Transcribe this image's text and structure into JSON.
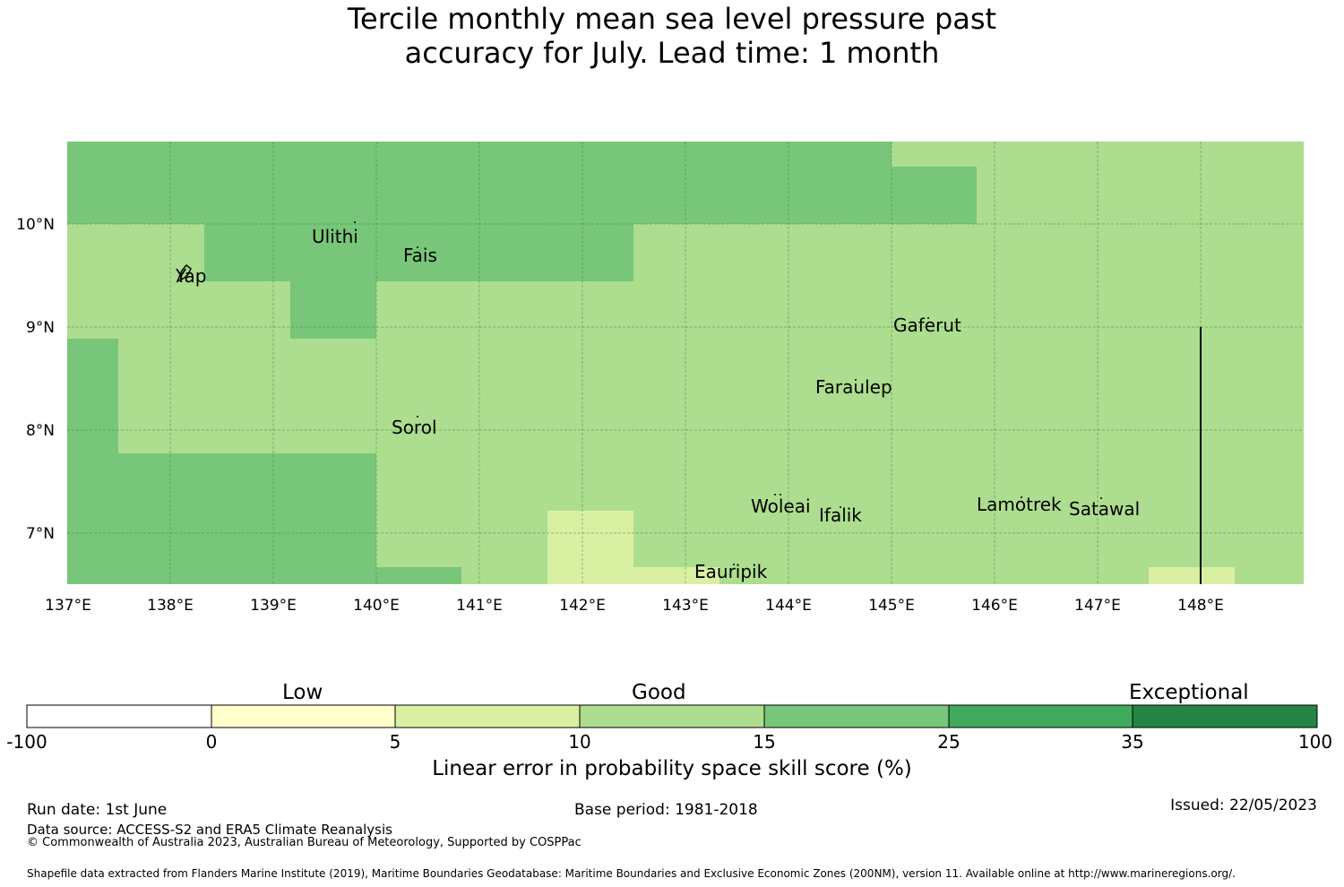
{
  "title_line1": "Tercile monthly mean sea level pressure past",
  "title_line2": "accuracy for July. Lead time: 1 month",
  "colors": {
    "grid": "#2e7d32",
    "level_white": "#ffffff",
    "level_0_5": "#ffffcc",
    "level_5_10": "#d9f0a3",
    "level_10_15": "#addd8e",
    "level_15_25": "#78c679",
    "level_25_35": "#41ab5d",
    "level_35_100": "#238443"
  },
  "map": {
    "lon_labels": [
      "137°E",
      "138°E",
      "139°E",
      "140°E",
      "141°E",
      "142°E",
      "143°E",
      "144°E",
      "145°E",
      "146°E",
      "147°E",
      "148°E"
    ],
    "lat_labels": [
      "10°N",
      "9°N",
      "8°N",
      "7°N"
    ],
    "places": [
      "Ulithi",
      "Fais",
      "Yap",
      "Gaferut",
      "Faraulep",
      "Sorol",
      "Woleai",
      "Ifalik",
      "Lamotrek",
      "Satawal",
      "Eauripik"
    ]
  },
  "colorbar": {
    "categories": [
      "Low",
      "Good",
      "Exceptional"
    ],
    "ticks": [
      "-100",
      "0",
      "5",
      "10",
      "15",
      "25",
      "35",
      "100"
    ],
    "label": "Linear error in probability space skill score (%)"
  },
  "footer": {
    "run_date": "Run date: 1st June",
    "base_period": "Base period: 1981-2018",
    "issued": "Issued: 22/05/2023",
    "data_source": "Data source: ACCESS-S2 and ERA5 Climate Reanalysis",
    "copyright": "© Commonwealth of Australia 2023, Australian Bureau of Meteorology, Supported by COSPPac",
    "shapefile": "Shapefile data extracted from Flanders Marine Institute (2019), Maritime Boundaries Geodatabase: Maritime Boundaries and Exclusive Economic Zones (200NM), version 11. Available online at http://www.marineregions.org/."
  }
}
